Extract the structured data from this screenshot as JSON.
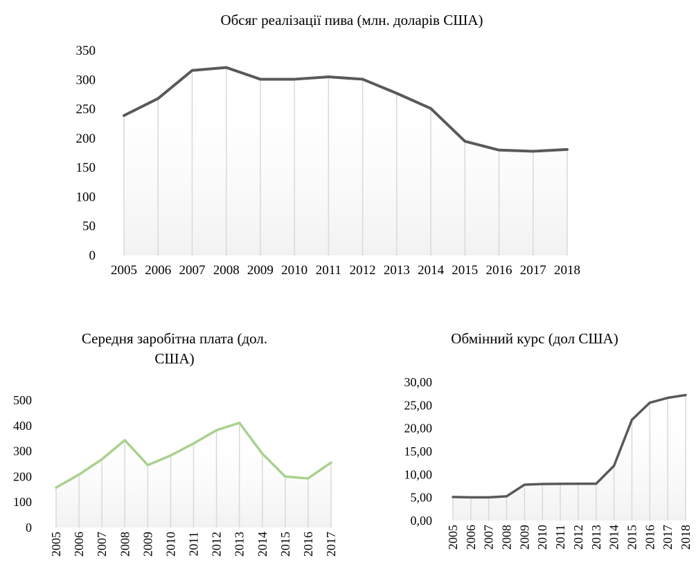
{
  "chart_data": [
    {
      "type": "line",
      "title": "Обсяг реалізації пива (млн. доларів США)",
      "categories": [
        "2005",
        "2006",
        "2007",
        "2008",
        "2009",
        "2010",
        "2011",
        "2012",
        "2013",
        "2014",
        "2015",
        "2016",
        "2017",
        "2018"
      ],
      "values": [
        239,
        268,
        316,
        321,
        301,
        301,
        305,
        301,
        277,
        251,
        195,
        180,
        178,
        181
      ],
      "ylim": [
        0,
        350
      ],
      "yticks": [
        "0",
        "50",
        "100",
        "150",
        "200",
        "250",
        "300",
        "350"
      ],
      "ytick_values": [
        0,
        50,
        100,
        150,
        200,
        250,
        300,
        350
      ],
      "line_color": "#595959",
      "grid": "vertical drop lines",
      "legend": "none"
    },
    {
      "type": "line",
      "title": "Середня заробітна плата (дол. США)",
      "categories": [
        "2005",
        "2006",
        "2007",
        "2008",
        "2009",
        "2010",
        "2011",
        "2012",
        "2013",
        "2014",
        "2015",
        "2016",
        "2017"
      ],
      "values": [
        157,
        208,
        268,
        343,
        245,
        283,
        330,
        382,
        411,
        290,
        200,
        193,
        255
      ],
      "ylim": [
        0,
        500
      ],
      "yticks": [
        "0",
        "100",
        "200",
        "300",
        "400",
        "500"
      ],
      "ytick_values": [
        0,
        100,
        200,
        300,
        400,
        500
      ],
      "line_color": "#a9d18e",
      "grid": "vertical drop lines",
      "legend": "none"
    },
    {
      "type": "line",
      "title": "Обмінний курс (дол США)",
      "categories": [
        "2005",
        "2006",
        "2007",
        "2008",
        "2009",
        "2010",
        "2011",
        "2012",
        "2013",
        "2014",
        "2015",
        "2016",
        "2017",
        "2018"
      ],
      "values": [
        5.12,
        5.05,
        5.05,
        5.27,
        7.79,
        7.94,
        7.97,
        7.99,
        7.99,
        11.89,
        21.84,
        25.55,
        26.6,
        27.2
      ],
      "ylim": [
        0,
        30
      ],
      "yticks": [
        "0,00",
        "5,00",
        "10,00",
        "15,00",
        "20,00",
        "25,00",
        "30,00"
      ],
      "ytick_values": [
        0,
        5,
        10,
        15,
        20,
        25,
        30
      ],
      "line_color": "#595959",
      "grid": "vertical drop lines",
      "legend": "none"
    }
  ]
}
